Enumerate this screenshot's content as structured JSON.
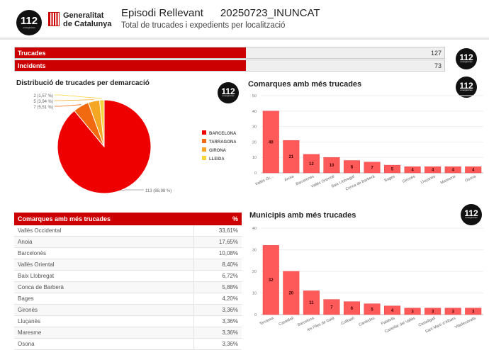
{
  "header": {
    "logo_text": "112",
    "logo_sub": "emergències",
    "gov_line1": "Generalitat",
    "gov_line2": "de Catalunya",
    "title": "Episodi Rellevant",
    "episode_code": "20250723_INUNCAT",
    "subtitle": "Total de trucades i expedients per localització"
  },
  "stats": [
    {
      "label": "Trucades",
      "value": "127"
    },
    {
      "label": "Incidents",
      "value": "73"
    }
  ],
  "colors": {
    "accent": "#cc0000",
    "bar": "#ff5a5a"
  },
  "chart_data": [
    {
      "type": "pie",
      "title": "Distribució de trucades per demarcació",
      "slices": [
        {
          "name": "BARCELONA",
          "value": 113,
          "label": "113 (88,98 %)",
          "color": "#ee0000"
        },
        {
          "name": "TARRAGONA",
          "value": 7,
          "label": "7 (5,51 %)",
          "color": "#f26a10"
        },
        {
          "name": "GIRONA",
          "value": 5,
          "label": "5 (3,94 %)",
          "color": "#f5a623"
        },
        {
          "name": "LLEIDA",
          "value": 2,
          "label": "2 (1,57 %)",
          "color": "#f7d33a"
        }
      ],
      "legend_position": "right"
    },
    {
      "type": "bar",
      "title": "Comarques amb més trucades",
      "categories": [
        "Vallès Oc...",
        "Anoia",
        "Barcelonès",
        "Vallès Oriental",
        "Baix Llobregat",
        "Conca de Barberà",
        "Bages",
        "Gironès",
        "Lluçanès",
        "Maresme",
        "Osona"
      ],
      "values": [
        40,
        21,
        12,
        10,
        8,
        7,
        5,
        4,
        4,
        4,
        4
      ],
      "ylim": [
        0,
        50
      ],
      "yticks": [
        0,
        10,
        20,
        30,
        40,
        50
      ],
      "grid": true
    },
    {
      "type": "bar",
      "title": "Municipis amb més trucades",
      "categories": [
        "Terrassa",
        "Castellolí",
        "Barcelona",
        "les Piles de Gaià",
        "Collbató",
        "Cardedeu",
        "Palafolls",
        "Castellar del Vallès",
        "Castellgalí",
        "Sant Martí d'Albars",
        "Viladecavalls"
      ],
      "values": [
        32,
        20,
        11,
        7,
        6,
        5,
        4,
        3,
        3,
        3,
        3
      ],
      "ylim": [
        0,
        40
      ],
      "yticks": [
        0,
        10,
        20,
        30,
        40
      ],
      "grid": true
    }
  ],
  "table": {
    "headers": [
      "Comarques amb més trucades",
      "%"
    ],
    "rows": [
      [
        "Vallès Occidental",
        "33,61%"
      ],
      [
        "Anoia",
        "17,65%"
      ],
      [
        "Barcelonès",
        "10,08%"
      ],
      [
        "Vallès Oriental",
        "8,40%"
      ],
      [
        "Baix Llobregat",
        "6,72%"
      ],
      [
        "Conca de Barberà",
        "5,88%"
      ],
      [
        "Bages",
        "4,20%"
      ],
      [
        "Gironès",
        "3,36%"
      ],
      [
        "Lluçanès",
        "3,36%"
      ],
      [
        "Maresme",
        "3,36%"
      ],
      [
        "Osona",
        "3,36%"
      ]
    ]
  }
}
